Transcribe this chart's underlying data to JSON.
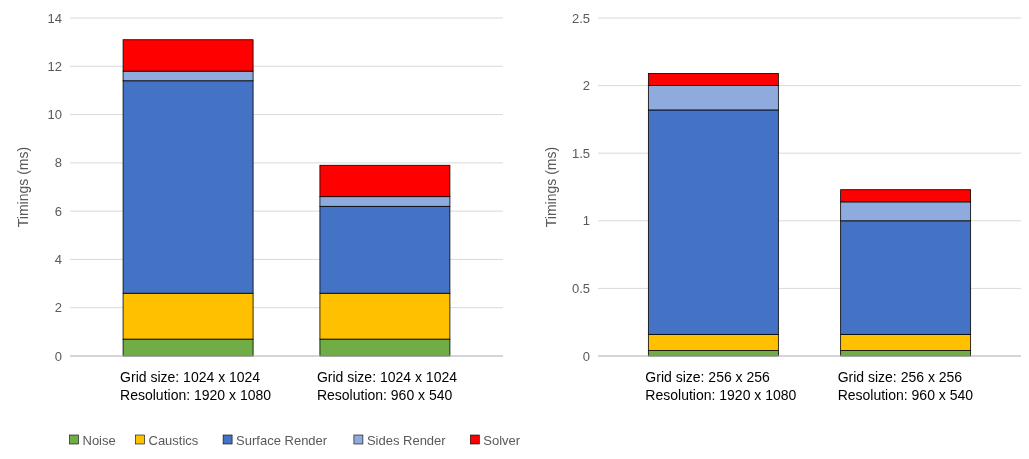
{
  "chart_data": [
    {
      "type": "bar",
      "stacked": true,
      "ylabel": "Timings (ms)",
      "categories": [
        "Grid size: 1024 x 1024\nResolution: 1920 x 1080",
        "Grid size: 1024 x 1024\nResolution: 960 x 540"
      ],
      "series": [
        {
          "name": "Noise",
          "color": "#70ad47",
          "values": [
            0.7,
            0.7
          ]
        },
        {
          "name": "Caustics",
          "color": "#ffc000",
          "values": [
            1.9,
            1.9
          ]
        },
        {
          "name": "Surface Render",
          "color": "#4472c4",
          "values": [
            8.8,
            3.6
          ]
        },
        {
          "name": "Sides Render",
          "color": "#8faadc",
          "values": [
            0.4,
            0.4
          ]
        },
        {
          "name": "Solver",
          "color": "#ff0000",
          "values": [
            1.3,
            1.3
          ]
        }
      ],
      "ylim": [
        0,
        14
      ],
      "yticks": [
        0,
        2,
        4,
        6,
        8,
        10,
        12,
        14
      ],
      "grid": "y",
      "legend": "bottom"
    },
    {
      "type": "bar",
      "stacked": true,
      "ylabel": "Timings (ms)",
      "categories": [
        "Grid size: 256 x 256\nResolution: 1920 x 1080",
        "Grid size: 256 x 256\nResolution: 960 x 540"
      ],
      "series": [
        {
          "color": "#70ad47",
          "values": [
            0.04,
            0.04
          ]
        },
        {
          "color": "#ffc000",
          "values": [
            0.12,
            0.12
          ]
        },
        {
          "color": "#4472c4",
          "values": [
            1.66,
            0.84
          ]
        },
        {
          "color": "#8faadc",
          "values": [
            0.18,
            0.14
          ]
        },
        {
          "color": "#ff0000",
          "values": [
            0.09,
            0.09
          ]
        }
      ],
      "ylim": [
        0,
        2.5
      ],
      "yticks": [
        0,
        0.5,
        1,
        1.5,
        2,
        2.5
      ],
      "grid": "y"
    }
  ]
}
